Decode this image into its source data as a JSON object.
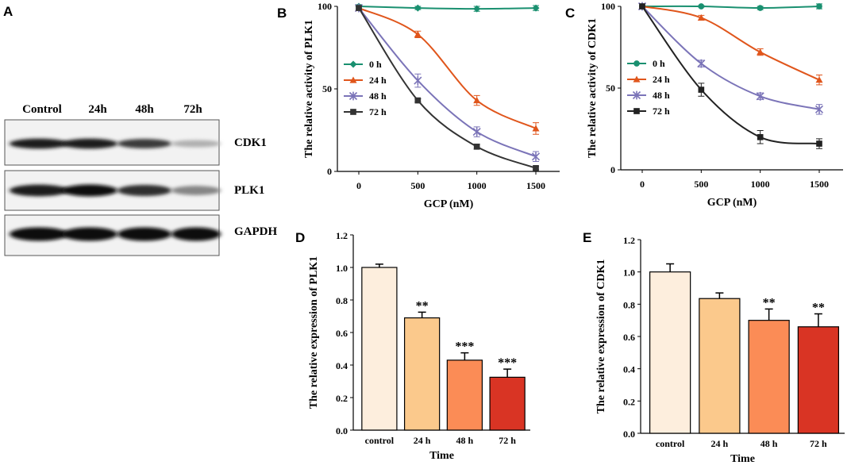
{
  "panels": {
    "a": "A",
    "b": "B",
    "c": "C",
    "d": "D",
    "e": "E"
  },
  "blot": {
    "lanes": [
      "Control",
      "24h",
      "48h",
      "72h"
    ],
    "proteins": [
      "CDK1",
      "PLK1",
      "GAPDH"
    ],
    "intensity": {
      "CDK1": [
        0.95,
        0.95,
        0.8,
        0.25
      ],
      "PLK1": [
        0.95,
        1.0,
        0.85,
        0.45
      ],
      "GAPDH": [
        1.0,
        1.0,
        1.0,
        1.0
      ]
    }
  },
  "chart_data": [
    {
      "id": "B",
      "type": "line",
      "ylabel": "The relative activity of PLK1",
      "xlabel": "GCP (nM)",
      "x": [
        0,
        500,
        1000,
        1500
      ],
      "xticks": [
        "0",
        "500",
        "1000",
        "1500"
      ],
      "ylim": [
        0,
        100
      ],
      "yticks": [
        "0",
        "50",
        "100"
      ],
      "legend_position": "middle-left",
      "series": [
        {
          "name": "0 h",
          "color": "#1a9070",
          "marker": "diamond",
          "values": [
            100,
            99,
            98.5,
            99
          ],
          "errors": [
            1,
            1,
            1.5,
            1.5
          ]
        },
        {
          "name": "24 h",
          "color": "#e0561c",
          "marker": "triangle",
          "values": [
            99,
            83,
            43,
            26
          ],
          "errors": [
            1,
            2,
            3,
            3.5
          ]
        },
        {
          "name": "48 h",
          "color": "#7b74b8",
          "marker": "x",
          "values": [
            99,
            55,
            24,
            9
          ],
          "errors": [
            1,
            4,
            3,
            3
          ]
        },
        {
          "name": "72 h",
          "color": "#333333",
          "marker": "square",
          "values": [
            99,
            43,
            15,
            2
          ],
          "errors": [
            1,
            1,
            1.5,
            1
          ]
        }
      ]
    },
    {
      "id": "C",
      "type": "line",
      "ylabel": "The relative activity of CDK1",
      "xlabel": "GCP (nM)",
      "x": [
        0,
        500,
        1000,
        1500
      ],
      "xticks": [
        "0",
        "500",
        "1000",
        "1500"
      ],
      "ylim": [
        0,
        100
      ],
      "yticks": [
        "0",
        "50",
        "100"
      ],
      "legend_position": "middle-left",
      "series": [
        {
          "name": "0 h",
          "color": "#1a9070",
          "marker": "circle",
          "values": [
            100,
            100,
            99,
            100
          ],
          "errors": [
            0.5,
            0.5,
            1,
            1.5
          ]
        },
        {
          "name": "24 h",
          "color": "#e0561c",
          "marker": "triangle",
          "values": [
            100,
            93,
            72,
            55
          ],
          "errors": [
            0.5,
            1.5,
            2,
            3
          ]
        },
        {
          "name": "48 h",
          "color": "#7b74b8",
          "marker": "x",
          "values": [
            100,
            65,
            45,
            37
          ],
          "errors": [
            0.5,
            2,
            2,
            3
          ]
        },
        {
          "name": "72 h",
          "color": "#222222",
          "marker": "square",
          "values": [
            100,
            49,
            20,
            16
          ],
          "errors": [
            0.5,
            4,
            4,
            3
          ]
        }
      ]
    },
    {
      "id": "D",
      "type": "bar",
      "ylabel": "The relative expression of PLK1",
      "xlabel": "Time",
      "categories": [
        "control",
        "24 h",
        "48 h",
        "72 h"
      ],
      "values": [
        1.0,
        0.69,
        0.43,
        0.325
      ],
      "errors": [
        0.02,
        0.035,
        0.045,
        0.05
      ],
      "significance": [
        "",
        "**",
        "***",
        "***"
      ],
      "colors": [
        "#fdeedd",
        "#fbc98c",
        "#fb8c56",
        "#d93424"
      ],
      "ylim": [
        0,
        1.2
      ],
      "yticks": [
        "0.0",
        "0.2",
        "0.4",
        "0.6",
        "0.8",
        "1.0",
        "1.2"
      ]
    },
    {
      "id": "E",
      "type": "bar",
      "ylabel": "The relative expression of CDK1",
      "xlabel": "Time",
      "categories": [
        "control",
        "24 h",
        "48 h",
        "72 h"
      ],
      "values": [
        1.0,
        0.835,
        0.7,
        0.66
      ],
      "errors": [
        0.05,
        0.035,
        0.07,
        0.08
      ],
      "significance": [
        "",
        "",
        "**",
        "**"
      ],
      "colors": [
        "#fdeedd",
        "#fbc98c",
        "#fb8c56",
        "#d93424"
      ],
      "ylim": [
        0,
        1.2
      ],
      "yticks": [
        "0.0",
        "0.2",
        "0.4",
        "0.6",
        "0.8",
        "1.0",
        "1.2"
      ]
    }
  ]
}
